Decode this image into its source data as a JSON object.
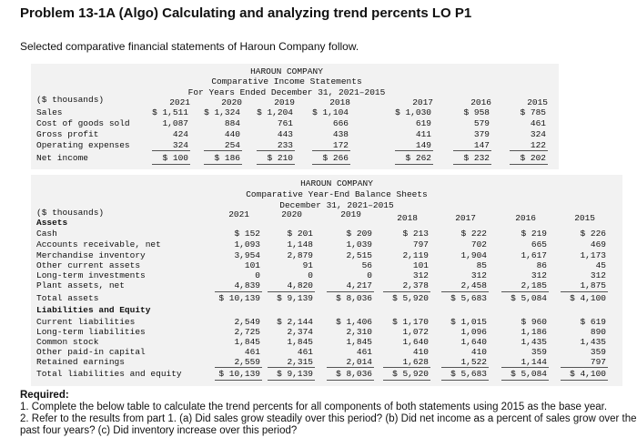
{
  "header": {
    "title": "Problem 13-1A (Algo) Calculating and analyzing trend percents LO P1",
    "intro": "Selected comparative financial statements of Haroun Company follow."
  },
  "income_statement": {
    "heading": [
      "HAROUN COMPANY",
      "Comparative Income Statements",
      "For Years Ended December 31, 2021–2015"
    ],
    "unit": "($ thousands)",
    "years": [
      "2021",
      "2020",
      "2019",
      "2018",
      "2017",
      "2016",
      "2015"
    ],
    "rows": [
      {
        "label": "Sales",
        "values": [
          "$ 1,511",
          "$ 1,324",
          "$ 1,204",
          "$ 1,104",
          "$ 1,030",
          "$ 958",
          "$ 785"
        ]
      },
      {
        "label": "Cost of goods sold",
        "values": [
          "1,087",
          "884",
          "761",
          "666",
          "619",
          "579",
          "461"
        ]
      },
      {
        "label": "Gross profit",
        "values": [
          "424",
          "440",
          "443",
          "438",
          "411",
          "379",
          "324"
        ]
      },
      {
        "label": "Operating expenses",
        "values": [
          "324",
          "254",
          "233",
          "172",
          "149",
          "147",
          "122"
        ]
      },
      {
        "label": "Net income",
        "values": [
          "$ 100",
          "$ 186",
          "$ 210",
          "$ 266",
          "$ 262",
          "$ 232",
          "$ 202"
        ]
      }
    ]
  },
  "balance_sheet": {
    "heading": [
      "HAROUN COMPANY",
      "Comparative Year-End Balance Sheets",
      "December 31, 2021–2015"
    ],
    "unit": "($ thousands)",
    "years": [
      "2021",
      "2020",
      "2019",
      "2018",
      "2017",
      "2016",
      "2015"
    ],
    "rows": [
      {
        "label": "Assets"
      },
      {
        "label": "Cash",
        "values": [
          "$ 152",
          "$ 201",
          "$ 209",
          "$ 213",
          "$ 222",
          "$ 219",
          "$ 226"
        ]
      },
      {
        "label": "Accounts receivable, net",
        "values": [
          "1,093",
          "1,148",
          "1,039",
          "797",
          "702",
          "665",
          "469"
        ]
      },
      {
        "label": "Merchandise inventory",
        "values": [
          "3,954",
          "2,879",
          "2,515",
          "2,119",
          "1,904",
          "1,617",
          "1,173"
        ]
      },
      {
        "label": "Other current assets",
        "values": [
          "101",
          "91",
          "56",
          "101",
          "85",
          "86",
          "45"
        ]
      },
      {
        "label": "Long-term investments",
        "values": [
          "0",
          "0",
          "0",
          "312",
          "312",
          "312",
          "312"
        ]
      },
      {
        "label": "Plant assets, net",
        "values": [
          "4,839",
          "4,820",
          "4,217",
          "2,378",
          "2,458",
          "2,185",
          "1,875"
        ]
      },
      {
        "label": "Total assets",
        "values": [
          "$ 10,139",
          "$ 9,139",
          "$ 8,036",
          "$ 5,920",
          "$ 5,683",
          "$ 5,084",
          "$ 4,100"
        ]
      },
      {
        "label": "Liabilities and Equity"
      },
      {
        "label": "Current liabilities",
        "values": [
          "2,549",
          "$ 2,144",
          "$ 1,406",
          "$ 1,170",
          "$ 1,015",
          "$ 960",
          "$ 619"
        ]
      },
      {
        "label": "Long-term liabilities",
        "values": [
          "2,725",
          "2,374",
          "2,310",
          "1,072",
          "1,096",
          "1,186",
          "890"
        ]
      },
      {
        "label": "Common stock",
        "values": [
          "1,845",
          "1,845",
          "1,845",
          "1,640",
          "1,640",
          "1,435",
          "1,435"
        ]
      },
      {
        "label": "Other paid-in capital",
        "values": [
          "461",
          "461",
          "461",
          "410",
          "410",
          "359",
          "359"
        ]
      },
      {
        "label": "Retained earnings",
        "values": [
          "2,559",
          "2,315",
          "2,014",
          "1,628",
          "1,522",
          "1,144",
          "797"
        ]
      },
      {
        "label": "Total liabilities and equity",
        "values": [
          "$ 10,139",
          "$ 9,139",
          "$ 8,036",
          "$ 5,920",
          "$ 5,683",
          "$ 5,084",
          "$ 4,100"
        ]
      }
    ]
  },
  "required": {
    "heading": "Required:",
    "items": [
      "1. Complete the below table to calculate the trend percents for all components of both statements using 2015 as the base year.",
      "2. Refer to the results from part 1. (a) Did sales grow steadily over this period? (b) Did net income as a percent of sales grow over the past four years? (c) Did inventory increase over this period?"
    ]
  }
}
